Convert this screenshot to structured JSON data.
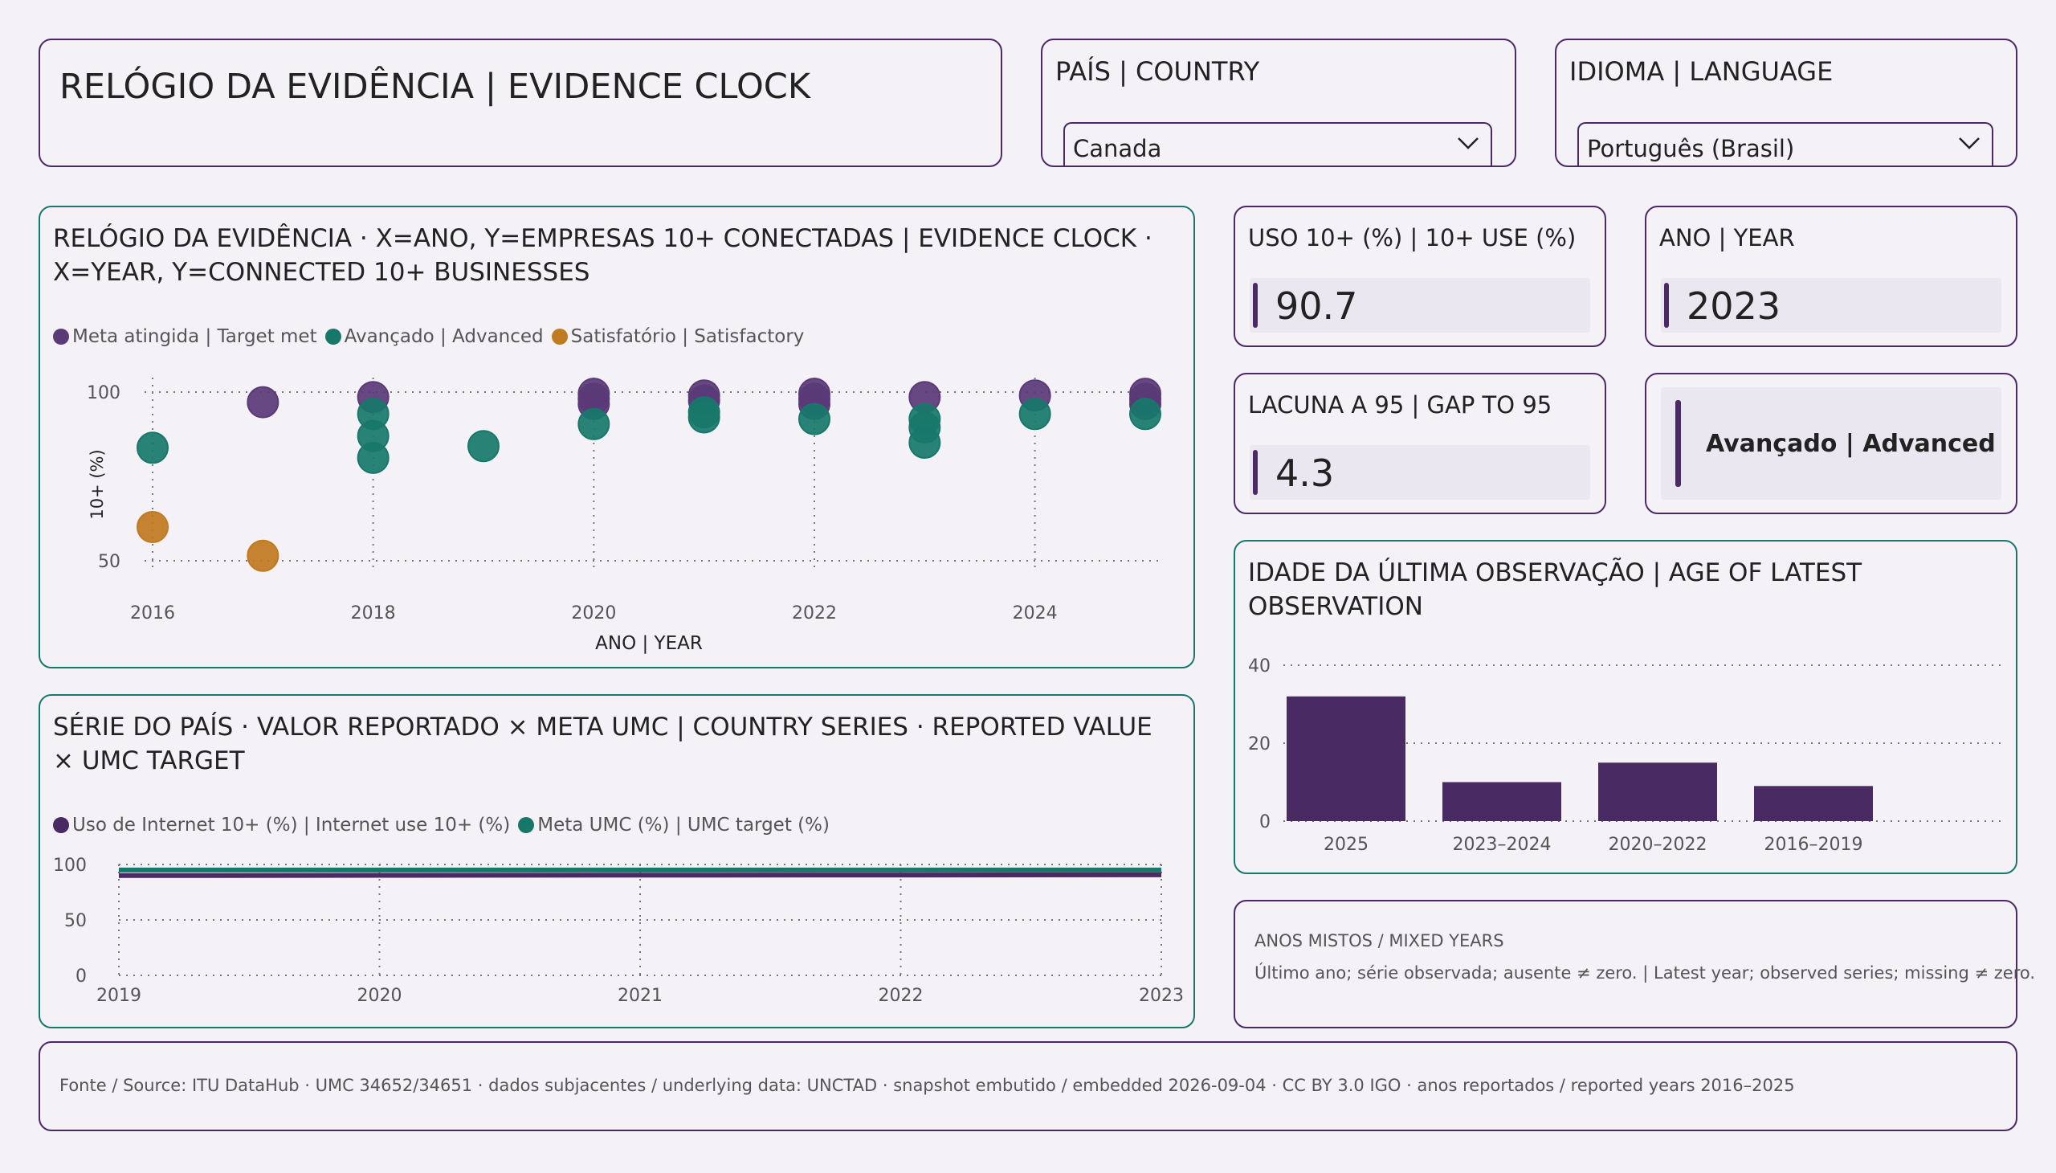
{
  "colors": {
    "purple": "#4a2a63",
    "teal": "#17786a",
    "orange": "#c07a1f",
    "bg": "#f4f1f7"
  },
  "header": {
    "title": "RELÓGIO DA EVIDÊNCIA | EVIDENCE CLOCK"
  },
  "country_filter": {
    "label": "PAÍS | COUNTRY",
    "value": "Canada",
    "icon": "chevron-down-icon"
  },
  "language_filter": {
    "label": "IDIOMA | LANGUAGE",
    "value": "Português (Brasil)",
    "icon": "chevron-down-icon"
  },
  "kpis": {
    "use": {
      "label": "USO 10+ (%) | 10+ USE (%)",
      "value": "90.7"
    },
    "year": {
      "label": "ANO | YEAR",
      "value": "2023"
    },
    "gap": {
      "label": "LACUNA A 95 | GAP TO 95",
      "value": "4.3"
    },
    "status": {
      "value": "Avançado | Advanced"
    }
  },
  "note": {
    "title": "ANOS MISTOS / MIXED YEARS",
    "text": "Último ano; série observada; ausente ≠ zero. | Latest year; observed series; missing ≠ zero."
  },
  "footer": {
    "text": "Fonte / Source: ITU DataHub · UMC 34652/34651 · dados subjacentes / underlying data: UNCTAD · snapshot embutido / embedded 2026-09-04 · CC BY 3.0 IGO · anos reportados / reported years 2016–2025"
  },
  "chart_data": [
    {
      "type": "scatter",
      "title": "RELÓGIO DA EVIDÊNCIA · X=ANO, Y=EMPRESAS 10+ CONECTADAS | EVIDENCE CLOCK · X=YEAR, Y=CONNECTED 10+ BUSINESSES",
      "xlabel": "ANO | YEAR",
      "ylabel": "10+ (%)",
      "xlim": [
        2016,
        2025
      ],
      "ylim": [
        50,
        100
      ],
      "x_ticks": [
        2016,
        2018,
        2020,
        2022,
        2024
      ],
      "y_ticks": [
        50,
        100
      ],
      "grid": true,
      "legend_position": "top-left",
      "series": [
        {
          "name": "Meta atingida | Target met",
          "color": "#5b3a78",
          "points": [
            [
              2017,
              97
            ],
            [
              2018,
              98.5
            ],
            [
              2020,
              99.5
            ],
            [
              2020,
              98
            ],
            [
              2020,
              96.5
            ],
            [
              2021,
              99
            ],
            [
              2021,
              97.5
            ],
            [
              2022,
              99.5
            ],
            [
              2022,
              98
            ],
            [
              2022,
              96.5
            ],
            [
              2023,
              98.5
            ],
            [
              2024,
              99
            ],
            [
              2025,
              99.5
            ],
            [
              2025,
              98
            ],
            [
              2025,
              96.5
            ]
          ]
        },
        {
          "name": "Avançado | Advanced",
          "color": "#17786a",
          "points": [
            [
              2016,
              83.5
            ],
            [
              2018,
              93.5
            ],
            [
              2018,
              87
            ],
            [
              2018,
              80.5
            ],
            [
              2019,
              84
            ],
            [
              2020,
              90.5
            ],
            [
              2021,
              94
            ],
            [
              2021,
              92.5
            ],
            [
              2022,
              92
            ],
            [
              2023,
              92
            ],
            [
              2023,
              89.5
            ],
            [
              2023,
              85
            ],
            [
              2024,
              93.5
            ],
            [
              2025,
              93.5
            ]
          ]
        },
        {
          "name": "Satisfatório | Satisfactory",
          "color": "#c07a1f",
          "points": [
            [
              2016,
              60
            ],
            [
              2017,
              51.5
            ]
          ]
        }
      ]
    },
    {
      "type": "line",
      "title": "SÉRIE DO PAÍS · VALOR REPORTADO × META UMC | COUNTRY SERIES · REPORTED VALUE × UMC TARGET",
      "x": [
        2019,
        2020,
        2021,
        2022,
        2023
      ],
      "ylim": [
        0,
        100
      ],
      "y_ticks": [
        0,
        50,
        100
      ],
      "grid": true,
      "legend_position": "top-left",
      "series": [
        {
          "name": "Uso de Internet 10+ (%) | Internet use 10+ (%)",
          "color": "#4a2a63",
          "values": [
            90,
            90.2,
            90.4,
            90.5,
            90.7
          ]
        },
        {
          "name": "Meta UMC (%) | UMC target (%)",
          "color": "#17786a",
          "values": [
            95,
            95,
            95,
            95,
            95
          ]
        }
      ]
    },
    {
      "type": "bar",
      "title": "IDADE DA ÚLTIMA OBSERVAÇÃO | AGE OF LATEST OBSERVATION",
      "categories": [
        "2025",
        "2023–2024",
        "2020–2022",
        "2016–2019"
      ],
      "values": [
        32,
        10,
        15,
        9
      ],
      "ylim": [
        0,
        40
      ],
      "y_ticks": [
        0,
        20,
        40
      ],
      "color": "#4a2a63",
      "grid": true
    }
  ]
}
